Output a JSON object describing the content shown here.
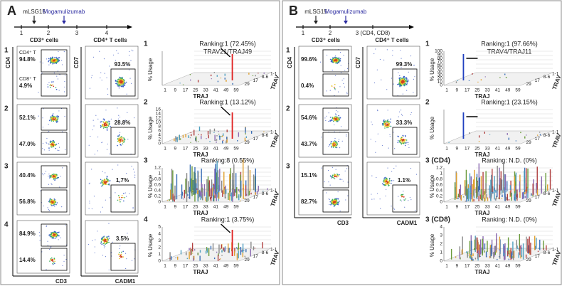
{
  "panels": [
    {
      "letter": "A",
      "timeline": {
        "ticks": [
          "1",
          "2",
          "3",
          "4"
        ],
        "events": [
          "mLSG15",
          "Mogamulizumab"
        ]
      },
      "headers": [
        "CD3⁺ cells",
        "CD4⁺ T cells"
      ],
      "axes": {
        "col1_y": "CD4",
        "col1_x": "CD3",
        "col2_y": "CD7",
        "col2_x": "CADM1"
      },
      "gate_names": [
        "CD4⁺ T",
        "CD8⁺ T"
      ],
      "flows": [
        {
          "label": "1",
          "upper": "94.8%",
          "lower": "4.9%",
          "cd4": "93.5%"
        },
        {
          "label": "2",
          "upper": "52.1%",
          "lower": "47.0%",
          "cd4": "28.8%"
        },
        {
          "label": "3",
          "upper": "40.4%",
          "lower": "56.8%",
          "cd4": "1.7%"
        },
        {
          "label": "4",
          "upper": "84.9%",
          "lower": "14.4%",
          "cd4": "3.5%"
        }
      ],
      "charts": [
        {
          "label": "1",
          "ranking": "Ranking:1 (72.45%)",
          "clone": "TRAV21/TRAJ49",
          "yticks": []
        },
        {
          "label": "2",
          "ranking": "Ranking:1 (13.12%)",
          "yticks": [
            "0",
            "2",
            "4",
            "6",
            "8",
            "10",
            "12",
            "14",
            "16"
          ]
        },
        {
          "label": "3",
          "ranking": "Ranking:8 (0.55%)",
          "yticks": [
            "0",
            "0.2",
            "0.4",
            "0.6",
            "0.8",
            "1",
            "1.2"
          ]
        },
        {
          "label": "4",
          "ranking": "Ranking:1 (3.75%)",
          "yticks": [
            "0",
            "1",
            "2",
            "3",
            "4",
            "5"
          ]
        }
      ],
      "chart_axes": {
        "y": "% Usage",
        "x": "TRAJ",
        "z": "TRAV",
        "xticks": [
          "1",
          "9",
          "17",
          "25",
          "33",
          "41",
          "49",
          "59"
        ],
        "zticks": [
          "1-1",
          "8-6",
          "17",
          "29"
        ]
      }
    },
    {
      "letter": "B",
      "timeline": {
        "ticks": [
          "1",
          "2",
          "3 (CD4, CD8)"
        ],
        "events": [
          "mLSG15",
          "Mogamulizumab"
        ]
      },
      "headers": [
        "CD3⁺ cells",
        "CD4⁺ T cells"
      ],
      "axes": {
        "col1_y": "CD4",
        "col1_x": "CD3",
        "col2_y": "CD7",
        "col2_x": "CADM1"
      },
      "flows": [
        {
          "label": "1",
          "upper": "99.6%",
          "lower": "0.4%",
          "cd4": "99.3%"
        },
        {
          "label": "2",
          "upper": "54.6%",
          "lower": "43.7%",
          "cd4": "33.3%"
        },
        {
          "label": "3",
          "upper": "15.1%",
          "lower": "82.7%",
          "cd4": "1.1%"
        }
      ],
      "charts": [
        {
          "label": "1",
          "ranking": "Ranking:1 (97.66%)",
          "clone": "TRAV4/TRAJ11",
          "yticks": [
            "0",
            "10",
            "20",
            "30",
            "40",
            "50",
            "60",
            "70",
            "80",
            "90",
            "100"
          ]
        },
        {
          "label": "2",
          "ranking": "Ranking:1 (23.15%)",
          "yticks": []
        },
        {
          "label": "3 (CD4)",
          "ranking": "Ranking: N.D. (0%)",
          "yticks": [
            "0",
            "0.2",
            "0.4",
            "0.6",
            "0.8",
            "1",
            "1.2"
          ]
        },
        {
          "label": "3 (CD8)",
          "ranking": "Ranking: N.D. (0%)",
          "yticks": [
            "0",
            "1",
            "2",
            "3",
            "4"
          ]
        }
      ],
      "chart_axes": {
        "y": "% Usage",
        "x": "TRAJ",
        "z": "TRAV",
        "xticks": [
          "1",
          "9",
          "17",
          "25",
          "33",
          "41",
          "49",
          "59"
        ],
        "zticks": [
          "1-1",
          "8-6",
          "17",
          "29"
        ]
      }
    }
  ]
}
